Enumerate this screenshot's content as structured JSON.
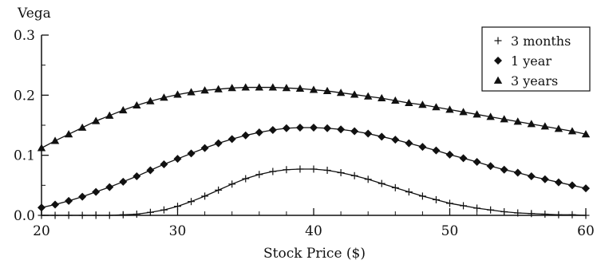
{
  "chart_data": {
    "type": "line",
    "title": "",
    "xlabel": "Stock Price ($)",
    "ylabel": "Vega",
    "xlim": [
      20,
      60
    ],
    "ylim": [
      0,
      0.3
    ],
    "xticks": [
      20,
      30,
      40,
      50,
      60
    ],
    "xtick_labels": [
      "20",
      "30",
      "40",
      "50",
      "60"
    ],
    "yticks": [
      0,
      0.1,
      0.2,
      0.3
    ],
    "ytick_labels": [
      "0.0",
      "0.1",
      "0.2",
      "0.3"
    ],
    "grid": false,
    "legend_position": "top-right",
    "series": [
      {
        "name": "3 months",
        "marker": "plus",
        "x": [
          20,
          21,
          22,
          23,
          24,
          25,
          26,
          27,
          28,
          29,
          30,
          31,
          32,
          33,
          34,
          35,
          36,
          37,
          38,
          39,
          40,
          41,
          42,
          43,
          44,
          45,
          46,
          47,
          48,
          49,
          50,
          51,
          52,
          53,
          54,
          55,
          56,
          57,
          58,
          59,
          60
        ],
        "values": [
          0.0,
          0.0,
          0.0,
          0.0,
          0.0,
          0.0,
          0.001,
          0.002,
          0.005,
          0.009,
          0.015,
          0.023,
          0.032,
          0.042,
          0.052,
          0.061,
          0.068,
          0.073,
          0.076,
          0.077,
          0.077,
          0.075,
          0.071,
          0.066,
          0.06,
          0.053,
          0.046,
          0.039,
          0.032,
          0.026,
          0.02,
          0.016,
          0.012,
          0.009,
          0.006,
          0.004,
          0.003,
          0.002,
          0.001,
          0.001,
          0.0
        ]
      },
      {
        "name": "1 year",
        "marker": "diamond",
        "x": [
          20,
          21,
          22,
          23,
          24,
          25,
          26,
          27,
          28,
          29,
          30,
          31,
          32,
          33,
          34,
          35,
          36,
          37,
          38,
          39,
          40,
          41,
          42,
          43,
          44,
          45,
          46,
          47,
          48,
          49,
          50,
          51,
          52,
          53,
          54,
          55,
          56,
          57,
          58,
          59,
          60
        ],
        "values": [
          0.013,
          0.018,
          0.024,
          0.031,
          0.039,
          0.047,
          0.056,
          0.065,
          0.075,
          0.085,
          0.094,
          0.103,
          0.112,
          0.12,
          0.127,
          0.133,
          0.138,
          0.142,
          0.145,
          0.146,
          0.146,
          0.145,
          0.143,
          0.14,
          0.136,
          0.131,
          0.126,
          0.12,
          0.114,
          0.108,
          0.101,
          0.095,
          0.089,
          0.082,
          0.076,
          0.071,
          0.065,
          0.06,
          0.055,
          0.05,
          0.045
        ]
      },
      {
        "name": "3 years",
        "marker": "triangle",
        "x": [
          20,
          21,
          22,
          23,
          24,
          25,
          26,
          27,
          28,
          29,
          30,
          31,
          32,
          33,
          34,
          35,
          36,
          37,
          38,
          39,
          40,
          41,
          42,
          43,
          44,
          45,
          46,
          47,
          48,
          49,
          50,
          51,
          52,
          53,
          54,
          55,
          56,
          57,
          58,
          59,
          60
        ],
        "values": [
          0.112,
          0.124,
          0.135,
          0.146,
          0.157,
          0.166,
          0.175,
          0.183,
          0.19,
          0.196,
          0.201,
          0.205,
          0.208,
          0.21,
          0.212,
          0.213,
          0.213,
          0.213,
          0.212,
          0.211,
          0.209,
          0.207,
          0.204,
          0.201,
          0.198,
          0.195,
          0.191,
          0.187,
          0.184,
          0.18,
          0.176,
          0.172,
          0.168,
          0.164,
          0.16,
          0.156,
          0.152,
          0.148,
          0.144,
          0.14,
          0.135
        ]
      }
    ]
  }
}
